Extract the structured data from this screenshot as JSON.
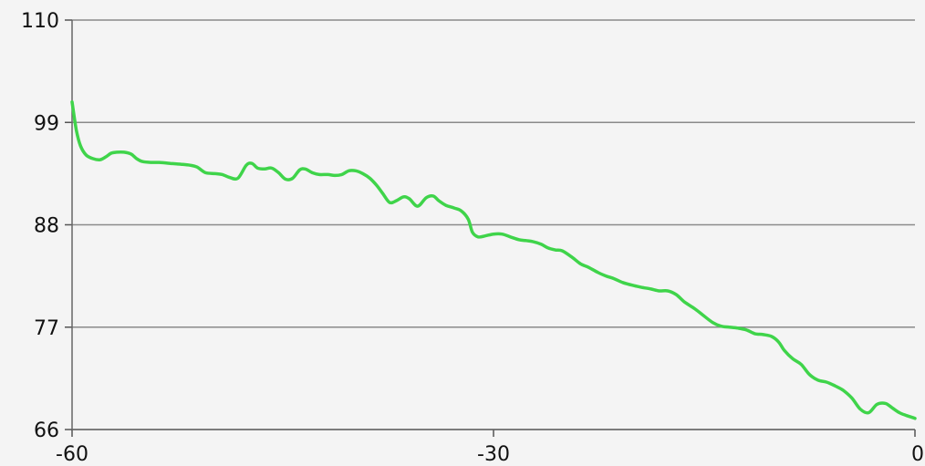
{
  "chart_data": {
    "type": "line",
    "title": "",
    "xlabel": "",
    "ylabel": "",
    "xlim": [
      -60,
      0
    ],
    "ylim": [
      66,
      110
    ],
    "x_ticks": [
      "-60",
      "-30",
      "0"
    ],
    "y_ticks": [
      "66",
      "77",
      "88",
      "99",
      "110"
    ],
    "grid": "horizontal",
    "legend": "none",
    "series": [
      {
        "color": "#3fd44a",
        "x": [
          -60,
          -59.7,
          -59.4,
          -59,
          -58.5,
          -58,
          -57.6,
          -57.2,
          -56.8,
          -56.3,
          -55.8,
          -55.4,
          -55,
          -54.4,
          -53.8,
          -53,
          -52.2,
          -51.6,
          -51.1,
          -50.5,
          -49.8,
          -49.3,
          -48.8,
          -48.2,
          -47.6,
          -47.2,
          -46.8,
          -46.3,
          -45.8,
          -45.3,
          -44.8,
          -44.3,
          -43.8,
          -43.4,
          -42.9,
          -42.4,
          -41.8,
          -41.3,
          -40.8,
          -40.3,
          -39.8,
          -39.3,
          -38.8,
          -38.3,
          -37.9,
          -37.4,
          -36.9,
          -36.4,
          -36,
          -35.4,
          -34.8,
          -34.3,
          -33.9,
          -33.4,
          -32.8,
          -32.3,
          -31.8,
          -31.5,
          -31.1,
          -30.6,
          -30,
          -29.4,
          -28.8,
          -28.2,
          -27.7,
          -27.2,
          -26.6,
          -26.1,
          -25.6,
          -25.1,
          -24.4,
          -23.8,
          -23.2,
          -22.6,
          -22,
          -21.4,
          -20.8,
          -20.1,
          -19.5,
          -18.8,
          -18.2,
          -17.6,
          -17,
          -16.4,
          -15.7,
          -15.1,
          -14.4,
          -13.8,
          -13.2,
          -12.6,
          -12,
          -11.4,
          -10.8,
          -10.2,
          -9.7,
          -9.3,
          -8.7,
          -8.1,
          -7.5,
          -6.9,
          -6.3,
          -5.7,
          -5.1,
          -4.5,
          -3.9,
          -3.3,
          -2.7,
          -2.1,
          -1.6,
          -1.1,
          -0.6,
          -0.2,
          0
        ],
        "y": [
          101.2,
          98.2,
          96.5,
          95.5,
          95.1,
          95.0,
          95.3,
          95.7,
          95.8,
          95.8,
          95.6,
          95.1,
          94.8,
          94.7,
          94.7,
          94.6,
          94.5,
          94.4,
          94.2,
          93.6,
          93.5,
          93.4,
          93.1,
          93.0,
          94.4,
          94.6,
          94.1,
          94.0,
          94.1,
          93.6,
          92.9,
          93.0,
          93.9,
          94.0,
          93.6,
          93.4,
          93.4,
          93.3,
          93.4,
          93.8,
          93.8,
          93.5,
          93.0,
          92.2,
          91.4,
          90.4,
          90.6,
          91.0,
          90.8,
          90.0,
          90.9,
          91.1,
          90.6,
          90.1,
          89.8,
          89.5,
          88.6,
          87.2,
          86.7,
          86.8,
          87.0,
          87.0,
          86.7,
          86.4,
          86.3,
          86.2,
          85.9,
          85.5,
          85.3,
          85.2,
          84.5,
          83.8,
          83.4,
          82.9,
          82.5,
          82.2,
          81.8,
          81.5,
          81.3,
          81.1,
          80.9,
          80.9,
          80.5,
          79.7,
          79.0,
          78.3,
          77.5,
          77.1,
          77.0,
          76.9,
          76.7,
          76.3,
          76.2,
          76.0,
          75.4,
          74.5,
          73.6,
          73.0,
          71.9,
          71.3,
          71.1,
          70.7,
          70.2,
          69.4,
          68.2,
          67.8,
          68.7,
          68.8,
          68.3,
          67.8,
          67.5,
          67.3,
          67.2
        ]
      }
    ]
  }
}
